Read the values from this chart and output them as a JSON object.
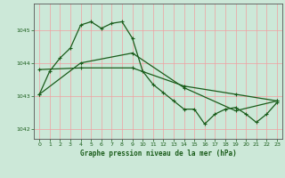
{
  "title": "Graphe pression niveau de la mer (hPa)",
  "bg_color": "#cce8d8",
  "grid_color": "#f0a0a0",
  "line_color": "#1a5c1a",
  "xlim": [
    -0.5,
    23.5
  ],
  "ylim": [
    1041.7,
    1045.8
  ],
  "yticks": [
    1042,
    1043,
    1044,
    1045
  ],
  "xticks": [
    0,
    1,
    2,
    3,
    4,
    5,
    6,
    7,
    8,
    9,
    10,
    11,
    12,
    13,
    14,
    15,
    16,
    17,
    18,
    19,
    20,
    21,
    22,
    23
  ],
  "s1_x": [
    0,
    1,
    2,
    3,
    4,
    5,
    6,
    7,
    8,
    9,
    10,
    11,
    12,
    13,
    14,
    15,
    16,
    17,
    18,
    19,
    20,
    21,
    22,
    23
  ],
  "s1_y": [
    1043.05,
    1043.75,
    1044.15,
    1044.45,
    1045.15,
    1045.25,
    1045.05,
    1045.2,
    1045.25,
    1044.75,
    1043.75,
    1043.35,
    1043.1,
    1042.85,
    1042.6,
    1042.6,
    1042.15,
    1042.45,
    1042.6,
    1042.65,
    1042.45,
    1042.2,
    1042.45,
    1042.8
  ],
  "s2_x": [
    0,
    4,
    9,
    14,
    19,
    23
  ],
  "s2_y": [
    1043.8,
    1043.85,
    1043.85,
    1043.3,
    1043.05,
    1042.85
  ],
  "s3_x": [
    0,
    4,
    9,
    14,
    19,
    23
  ],
  "s3_y": [
    1043.05,
    1044.0,
    1044.3,
    1043.25,
    1042.55,
    1042.85
  ]
}
